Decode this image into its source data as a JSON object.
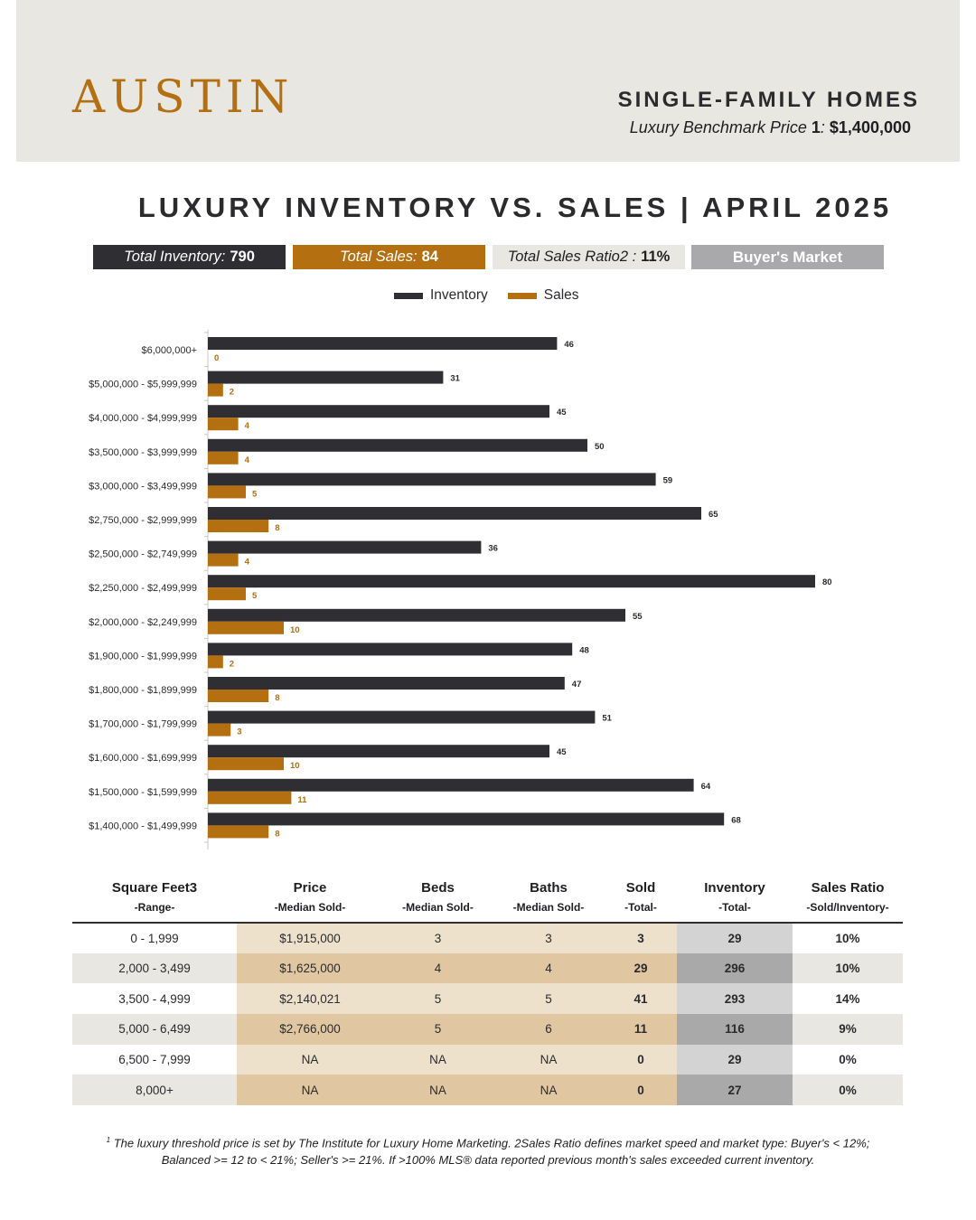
{
  "header": {
    "city": "AUSTIN",
    "property_type": "SINGLE-FAMILY HOMES",
    "benchmark_label": "Luxury Benchmark Price ",
    "benchmark_sup": "1",
    "benchmark_colon": ": ",
    "benchmark_value": "$1,400,000"
  },
  "title": "LUXURY INVENTORY VS. SALES | APRIL 2025",
  "stats": {
    "inventory_label": "Total Inventory:",
    "inventory_value": "790",
    "sales_label": "Total Sales:",
    "sales_value": "84",
    "ratio_label": "Total Sales Ratio2 :",
    "ratio_value": "11%",
    "market": "Buyer's Market"
  },
  "colors": {
    "inventory": "#2e2e33",
    "sales": "#b36f10",
    "background_band": "#e8e7e2"
  },
  "chart_data": {
    "type": "bar",
    "orientation": "horizontal",
    "categories": [
      "$6,000,000+",
      "$5,000,000 - $5,999,999",
      "$4,000,000 - $4,999,999",
      "$3,500,000 - $3,999,999",
      "$3,000,000 - $3,499,999",
      "$2,750,000 - $2,999,999",
      "$2,500,000 - $2,749,999",
      "$2,250,000 - $2,499,999",
      "$2,000,000 - $2,249,999",
      "$1,900,000 - $1,999,999",
      "$1,800,000 - $1,899,999",
      "$1,700,000 - $1,799,999",
      "$1,600,000 - $1,699,999",
      "$1,500,000 - $1,599,999",
      "$1,400,000 - $1,499,999"
    ],
    "series": [
      {
        "name": "Inventory",
        "color": "#2e2e33",
        "values": [
          46,
          31,
          45,
          50,
          59,
          65,
          36,
          80,
          55,
          48,
          47,
          51,
          45,
          64,
          68
        ]
      },
      {
        "name": "Sales",
        "color": "#b36f10",
        "values": [
          0,
          2,
          4,
          4,
          5,
          8,
          4,
          5,
          10,
          2,
          8,
          3,
          10,
          11,
          8
        ]
      }
    ],
    "xlim": [
      0,
      80
    ],
    "legend": "top-center",
    "grid": false
  },
  "table": {
    "headers": [
      {
        "title": "Square Feet3",
        "sub": "-Range-"
      },
      {
        "title": "Price",
        "sub": "-Median Sold-"
      },
      {
        "title": "Beds",
        "sub": "-Median Sold-"
      },
      {
        "title": "Baths",
        "sub": "-Median Sold-"
      },
      {
        "title": "Sold",
        "sub": "-Total-"
      },
      {
        "title": "Inventory",
        "sub": "-Total-"
      },
      {
        "title": "Sales Ratio",
        "sub": "-Sold/Inventory-"
      }
    ],
    "rows": [
      [
        "0 - 1,999",
        "$1,915,000",
        "3",
        "3",
        "3",
        "29",
        "10%"
      ],
      [
        "2,000 - 3,499",
        "$1,625,000",
        "4",
        "4",
        "29",
        "296",
        "10%"
      ],
      [
        "3,500 - 4,999",
        "$2,140,021",
        "5",
        "5",
        "41",
        "293",
        "14%"
      ],
      [
        "5,000 - 6,499",
        "$2,766,000",
        "5",
        "6",
        "11",
        "116",
        "9%"
      ],
      [
        "6,500 - 7,999",
        "NA",
        "NA",
        "NA",
        "0",
        "29",
        "0%"
      ],
      [
        "8,000+",
        "NA",
        "NA",
        "NA",
        "0",
        "27",
        "0%"
      ]
    ]
  },
  "footnote": {
    "sup": "1",
    "line1": " The luxury threshold price is set by The Institute for Luxury Home Marketing. 2Sales Ratio defines market speed and market type: Buyer's < 12%;",
    "line2": "Balanced >= 12 to < 21%; Seller's >= 21%. If >100% MLS® data reported previous month's sales exceeded current inventory."
  }
}
